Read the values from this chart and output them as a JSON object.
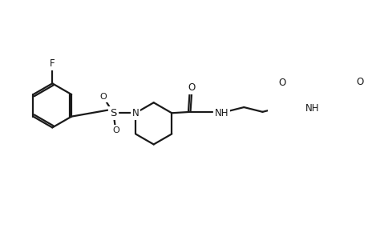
{
  "bg_color": "#ffffff",
  "line_color": "#1a1a1a",
  "line_width": 1.6,
  "font_size": 8.5,
  "figsize": [
    4.6,
    3.0
  ],
  "dpi": 100,
  "xlim": [
    0,
    460
  ],
  "ylim": [
    0,
    300
  ]
}
